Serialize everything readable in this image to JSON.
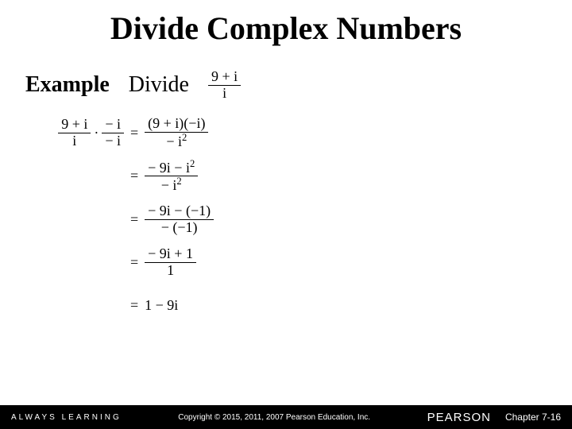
{
  "title": "Divide Complex Numbers",
  "example_label": "Example",
  "divide_label": "Divide",
  "problem": {
    "num": "9 + i",
    "den": "i"
  },
  "steps": {
    "lhs1": {
      "f1": {
        "num": "9 + i",
        "den": "i"
      },
      "dot": "·",
      "f2": {
        "num": "− i",
        "den": "− i"
      }
    },
    "rhs1": {
      "num": "(9 + i)(−i)",
      "den_base": "− i",
      "den_sup": "2"
    },
    "rhs2": {
      "num_a": "− 9i − i",
      "num_sup": "2",
      "den_base": "− i",
      "den_sup": "2"
    },
    "rhs3": {
      "num": "− 9i − (−1)",
      "den": "− (−1)"
    },
    "rhs4": {
      "num": "− 9i + 1",
      "den": "1"
    },
    "rhs5": "1 − 9i",
    "eq": "="
  },
  "footer": {
    "always": "ALWAYS LEARNING",
    "copyright": "Copyright © 2015, 2011, 2007 Pearson Education, Inc.",
    "pearson": "PEARSON",
    "chapter": "Chapter 7-16"
  },
  "colors": {
    "bg": "#ffffff",
    "text": "#000000",
    "footer_bg": "#000000",
    "footer_text": "#ffffff"
  }
}
